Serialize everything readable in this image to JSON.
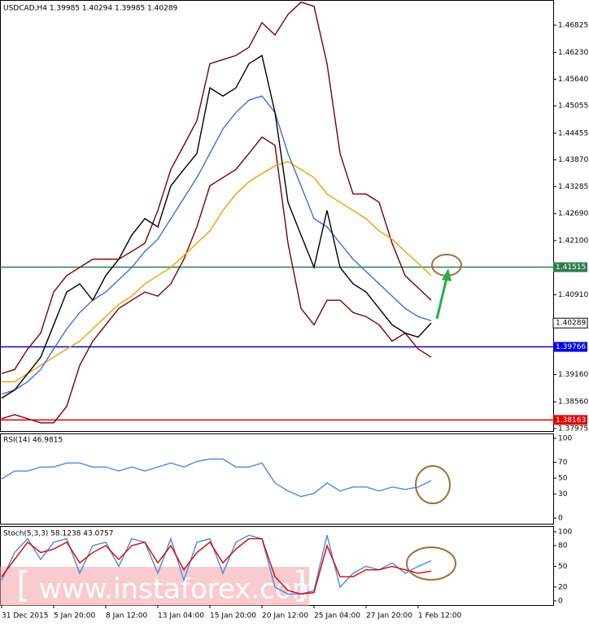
{
  "chart_data": [
    {
      "type": "line",
      "title": "USDCAD,H4  1.39985 1.40294 1.39985 1.40289",
      "categories": [
        "31 Dec 2015",
        null,
        null,
        null,
        "5 Jan 20:00",
        null,
        null,
        null,
        "8 Jan 12:00",
        null,
        null,
        null,
        "13 Jan 04:00",
        null,
        null,
        null,
        "15 Jan 20:00",
        null,
        null,
        null,
        "20 Jan 12:00",
        null,
        null,
        null,
        "25 Jan 04:00",
        null,
        null,
        null,
        "27 Jan 20:00",
        null,
        null,
        null,
        "1 Feb 12:00",
        null
      ],
      "series": [
        {
          "color": "#7a0000",
          "values": [
            1.3918,
            1.3927,
            1.3972,
            1.4007,
            1.4097,
            1.4133,
            1.4151,
            1.4169,
            1.4169,
            1.4169,
            1.4186,
            1.4204,
            1.4276,
            1.4366,
            1.4419,
            1.4473,
            1.4598,
            1.4607,
            1.4616,
            1.4634,
            1.4688,
            1.4661,
            1.4706,
            1.4733,
            1.4724,
            1.4598,
            1.4401,
            1.4312,
            1.4312,
            1.4294,
            1.4204,
            1.4133,
            1.4106,
            1.4079
          ]
        },
        {
          "color": "#7a0000",
          "values": [
            1.3819,
            1.3828,
            1.3819,
            1.381,
            1.381,
            1.3846,
            1.3936,
            1.3989,
            1.4025,
            1.4061,
            1.4079,
            1.4097,
            1.4088,
            1.4115,
            1.4169,
            1.424,
            1.433,
            1.4348,
            1.4366,
            1.4401,
            1.4437,
            1.4419,
            1.4204,
            1.4061,
            1.4025,
            1.4079,
            1.4079,
            1.4052,
            1.4043,
            1.4025,
            1.3989,
            1.4007,
            1.3972,
            1.3954
          ]
        },
        {
          "color": "#f0a000",
          "values": [
            1.39,
            1.39,
            1.3918,
            1.3936,
            1.3954,
            1.3972,
            1.3989,
            1.4016,
            1.4043,
            1.407,
            1.4088,
            1.4115,
            1.4133,
            1.4151,
            1.4177,
            1.4204,
            1.4231,
            1.4276,
            1.4312,
            1.4339,
            1.4357,
            1.4374,
            1.4383,
            1.4366,
            1.4348,
            1.4312,
            1.4294,
            1.4276,
            1.4258,
            1.4231,
            1.4213,
            1.4186,
            1.416,
            1.4133
          ]
        },
        {
          "color": "#3a6fd8",
          "values": [
            1.3873,
            1.3882,
            1.39,
            1.3927,
            1.3972,
            1.4016,
            1.4052,
            1.4079,
            1.4097,
            1.4124,
            1.4151,
            1.4186,
            1.4213,
            1.4258,
            1.4303,
            1.4348,
            1.4401,
            1.4455,
            1.4491,
            1.4518,
            1.4527,
            1.4491,
            1.4401,
            1.433,
            1.4258,
            1.424,
            1.4204,
            1.4169,
            1.4142,
            1.4115,
            1.4088,
            1.4061,
            1.4043,
            1.4034
          ]
        },
        {
          "color": "#000000",
          "values": [
            1.3864,
            1.3882,
            1.3918,
            1.3954,
            1.4025,
            1.4097,
            1.4115,
            1.4079,
            1.4133,
            1.4169,
            1.4222,
            1.4258,
            1.424,
            1.433,
            1.4366,
            1.4401,
            1.4545,
            1.4527,
            1.4545,
            1.4598,
            1.4616,
            1.4491,
            1.4294,
            1.4222,
            1.4151,
            1.4276,
            1.4151,
            1.4115,
            1.4097,
            1.4061,
            1.4025,
            1.4007,
            1.3998,
            1.40289
          ]
        }
      ],
      "ylim": [
        1.3792,
        1.4736
      ],
      "yticks": [
        1.46825,
        {
          "value": 1.4623,
          "label": "1.46230"
        },
        {
          "value": 1.4564,
          "label": "1.45640"
        },
        1.45055,
        1.44455,
        {
          "value": 1.4387,
          "label": "1.43870"
        },
        1.43285,
        {
          "value": 1.4269,
          "label": "1.42690"
        },
        {
          "value": 1.421,
          "label": "1.42100"
        },
        {
          "value": 1.4091,
          "label": "1.40910"
        },
        {
          "value": 1.3916,
          "label": "1.39160"
        },
        {
          "value": 1.3856,
          "label": "1.38560"
        },
        1.37975
      ],
      "levels": [
        {
          "value": 1.41515,
          "color": "#2e7d4f"
        },
        {
          "value": 1.39766,
          "color": "#0000e0"
        },
        {
          "value": 1.38163,
          "color": "#e00000"
        }
      ],
      "last_price": 1.40289
    },
    {
      "type": "line",
      "title": "RSI(14) 46.9815",
      "series": [
        {
          "color": "#4a8ae0",
          "values": [
            49,
            59,
            59,
            64,
            64,
            69,
            69,
            64,
            64,
            59,
            64,
            59,
            64,
            69,
            64,
            71,
            74,
            74,
            64,
            64,
            69,
            44,
            34,
            27,
            31,
            44,
            34,
            39,
            39,
            34,
            39,
            36,
            39,
            46.9815
          ]
        }
      ],
      "ylim": [
        -7,
        105
      ],
      "yticks": [
        100,
        70,
        50,
        30,
        0
      ]
    },
    {
      "type": "line",
      "title": "Stoch(5,3,3) 58.1238 43.0757",
      "series": [
        {
          "color": "#4a8ae0",
          "values": [
            30,
            70,
            90,
            60,
            85,
            90,
            40,
            80,
            85,
            50,
            90,
            85,
            40,
            90,
            30,
            85,
            90,
            40,
            85,
            95,
            90,
            20,
            10,
            10,
            15,
            95,
            20,
            40,
            50,
            45,
            55,
            40,
            50,
            58.1238
          ]
        },
        {
          "color": "#e00000",
          "values": [
            35,
            60,
            85,
            70,
            75,
            85,
            55,
            70,
            80,
            60,
            80,
            85,
            55,
            80,
            45,
            70,
            85,
            55,
            75,
            90,
            90,
            35,
            15,
            10,
            12,
            80,
            35,
            35,
            45,
            45,
            50,
            45,
            40,
            43.0757
          ]
        }
      ],
      "ylim": [
        -6,
        107
      ],
      "yticks": [
        100,
        80,
        50,
        20,
        0
      ],
      "watermark": "www.instaforex.com"
    }
  ]
}
